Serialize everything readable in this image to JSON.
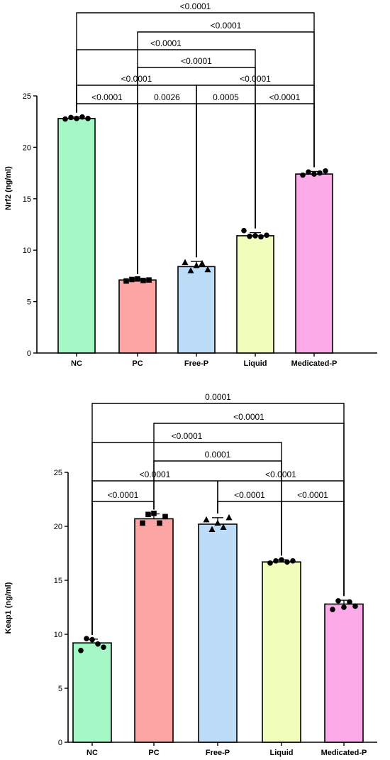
{
  "chart_data": [
    {
      "type": "bar",
      "categories": [
        "NC",
        "PC",
        "Free-P",
        "Liquid",
        "Medicated-P"
      ],
      "values": [
        22.8,
        7.1,
        8.4,
        11.4,
        17.4
      ],
      "errors": [
        0.15,
        0.15,
        0.5,
        0.3,
        0.25
      ],
      "ylabel": "Nrf2 (ng/ml)",
      "ylim": [
        0,
        25
      ],
      "yticks": [
        "0",
        "5",
        "10",
        "15",
        "20",
        "25"
      ],
      "colors": [
        "#a6f7c6",
        "#fda4a4",
        "#bddcf8",
        "#f1fdbb",
        "#fcaae8"
      ],
      "markers": [
        "circle",
        "square",
        "triangle",
        "circle",
        "circle"
      ],
      "points": [
        [
          22.75,
          22.9,
          22.8,
          22.95,
          22.8
        ],
        [
          7.0,
          7.15,
          7.2,
          7.05,
          7.1
        ],
        [
          8.8,
          8.0,
          8.5,
          8.7,
          8.1
        ],
        [
          11.9,
          11.35,
          11.4,
          11.3,
          11.45
        ],
        [
          17.3,
          17.6,
          17.4,
          17.5,
          17.7
        ]
      ],
      "comparisons": [
        {
          "a": 0,
          "b": 1,
          "label": "<0.0001"
        },
        {
          "a": 1,
          "b": 2,
          "label": "0.0026"
        },
        {
          "a": 2,
          "b": 3,
          "label": "0.0005"
        },
        {
          "a": 3,
          "b": 4,
          "label": "<0.0001"
        },
        {
          "a": 0,
          "b": 2,
          "label": "<0.0001"
        },
        {
          "a": 2,
          "b": 4,
          "label": "<0.0001"
        },
        {
          "a": 1,
          "b": 3,
          "label": "<0.0001"
        },
        {
          "a": 0,
          "b": 3,
          "label": "<0.0001"
        },
        {
          "a": 1,
          "b": 4,
          "label": "<0.0001"
        },
        {
          "a": 0,
          "b": 4,
          "label": "<0.0001"
        }
      ]
    },
    {
      "type": "bar",
      "categories": [
        "NC",
        "PC",
        "Free-P",
        "Liquid",
        "Medicated-P"
      ],
      "values": [
        9.2,
        20.7,
        20.2,
        16.7,
        12.8
      ],
      "errors": [
        0.35,
        0.45,
        0.6,
        0.2,
        0.35
      ],
      "ylabel": "Keap1 (ng/ml)",
      "ylim": [
        0,
        25
      ],
      "yticks": [
        "0",
        "5",
        "10",
        "15",
        "20",
        "25"
      ],
      "colors": [
        "#a6f7c6",
        "#fda4a4",
        "#bddcf8",
        "#f1fdbb",
        "#fcaae8"
      ],
      "markers": [
        "circle",
        "square",
        "triangle",
        "circle",
        "circle"
      ],
      "points": [
        [
          8.5,
          9.6,
          9.5,
          9.1,
          8.8
        ],
        [
          20.3,
          21.1,
          21.2,
          20.3,
          20.9
        ],
        [
          20.6,
          19.7,
          20.3,
          19.9,
          20.8
        ],
        [
          16.6,
          16.8,
          16.9,
          16.7,
          16.8
        ],
        [
          12.3,
          13.1,
          12.5,
          13.0,
          12.6
        ]
      ],
      "comparisons": [
        {
          "a": 0,
          "b": 1,
          "label": "<0.0001"
        },
        {
          "a": 2,
          "b": 3,
          "label": "<0.0001"
        },
        {
          "a": 3,
          "b": 4,
          "label": "<0.0001"
        },
        {
          "a": 0,
          "b": 2,
          "label": "<0.0001"
        },
        {
          "a": 2,
          "b": 4,
          "label": "<0.0001"
        },
        {
          "a": 1,
          "b": 3,
          "label": "0.0001"
        },
        {
          "a": 0,
          "b": 3,
          "label": "<0.0001"
        },
        {
          "a": 1,
          "b": 4,
          "label": "<0.0001"
        },
        {
          "a": 0,
          "b": 4,
          "label": "0.0001"
        }
      ]
    }
  ]
}
